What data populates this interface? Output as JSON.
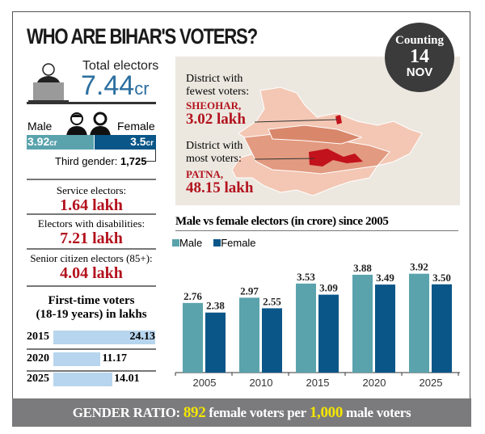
{
  "title": "WHO ARE BIHAR'S VOTERS?",
  "counting": {
    "label": "Counting",
    "day": "14",
    "month": "NOV"
  },
  "total": {
    "label": "Total electors",
    "value": "7.44",
    "unit": "cr"
  },
  "gender": {
    "male_label": "Male",
    "female_label": "Female",
    "male_value": "3.92",
    "female_value": "3.5",
    "unit": "cr",
    "male_fraction": 0.528,
    "third_label": "Third gender:",
    "third_value": "1,725"
  },
  "stats": [
    {
      "label": "Service electors:",
      "value": "1.64 lakh"
    },
    {
      "label": "Electors with disabilities:",
      "value": "7.21 lakh"
    },
    {
      "label": "Senior citizen electors (85+):",
      "value": "4.04 lakh"
    }
  ],
  "first_time": {
    "title_line1": "First-time voters",
    "title_line2": "(18-19 years) in  lakhs",
    "rows": [
      {
        "year": "2015",
        "value": "24.13",
        "num": 24.13
      },
      {
        "year": "2020",
        "value": "11.17",
        "num": 11.17
      },
      {
        "year": "2025",
        "value": "14.01",
        "num": 14.01
      }
    ]
  },
  "map": {
    "fewest_label_1": "District with",
    "fewest_label_2": "fewest voters:",
    "fewest_name": "SHEOHAR,",
    "fewest_value": "3.02 lakh",
    "most_label_1": "District with",
    "most_label_2": "most voters:",
    "most_name": "PATNA,",
    "most_value": "48.15 lakh"
  },
  "footer": {
    "prefix": "GENDER RATIO:",
    "female": "892",
    "middle": "female voters per",
    "male": "1,000",
    "suffix": "male voters"
  },
  "colors": {
    "male": "#5aa3ad",
    "female": "#0b5688",
    "accent": "#b3121d",
    "first_time_bar": "#b7d5ee"
  },
  "chart_data": {
    "type": "bar",
    "title": "Male vs female electors (in crore) since 2005",
    "categories": [
      "2005",
      "2010",
      "2015",
      "2020",
      "2025"
    ],
    "series": [
      {
        "name": "Male",
        "values": [
          2.76,
          2.97,
          3.53,
          3.88,
          3.92
        ],
        "labels": [
          "2.76",
          "2.97",
          "3.53",
          "3.88",
          "3.92"
        ]
      },
      {
        "name": "Female",
        "values": [
          2.38,
          2.55,
          3.09,
          3.49,
          3.5
        ],
        "labels": [
          "2.38",
          "2.55",
          "3.09",
          "3.49",
          "3.50"
        ]
      }
    ],
    "ylim": [
      0,
      4.2
    ],
    "legend": "top-left",
    "grid": false
  }
}
